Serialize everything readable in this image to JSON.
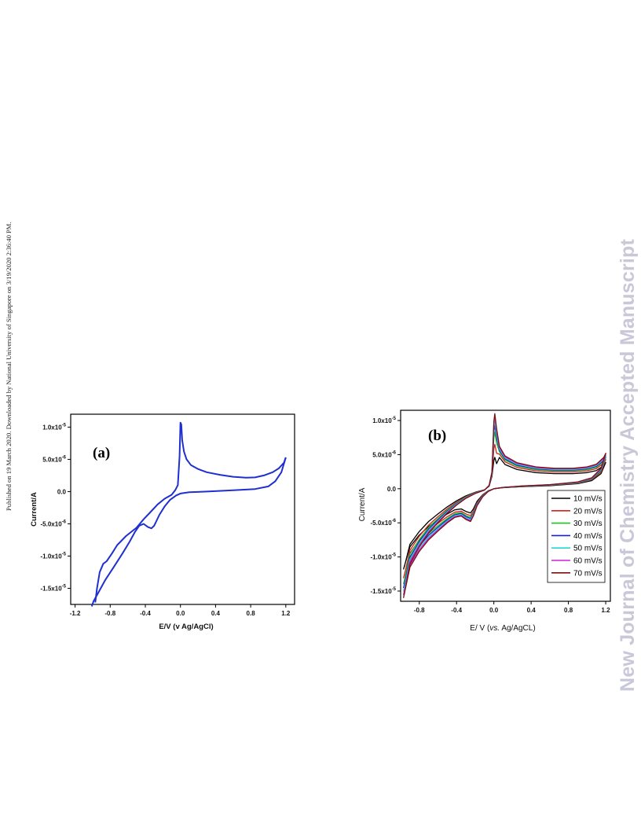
{
  "side_note": "Published on 19 March 2020. Downloaded by National University of Singapore on 3/19/2020 2:36:40 PM.",
  "watermark": "New Journal of Chemistry Accepted Manuscript",
  "chart_data": [
    {
      "panel_label": "(a)",
      "type": "line",
      "xlabel": "E/V (v Ag/AgCl)",
      "ylabel": "Current/A",
      "xlim": [
        -1.25,
        1.3
      ],
      "ylim": [
        -1.75e-05,
        1.2e-05
      ],
      "xticks": [
        -1.2,
        -0.8,
        -0.4,
        0.0,
        0.4,
        0.8,
        1.2
      ],
      "xtick_labels": [
        "-1.2",
        "-0.8",
        "-0.4",
        "0.0",
        "0.4",
        "0.8",
        "1.2"
      ],
      "yticks": [
        1e-05,
        5e-06,
        0.0,
        -5e-06,
        -1e-05,
        -1.5e-05
      ],
      "ytick_labels": [
        {
          "base": "1.0x10",
          "exp": "-5"
        },
        {
          "base": "5.0x10",
          "exp": "-6"
        },
        {
          "base": "0.0",
          "exp": ""
        },
        {
          "base": "-5.0x10",
          "exp": "-6"
        },
        {
          "base": "-1.0x10",
          "exp": "-5"
        },
        {
          "base": "-1.5x10",
          "exp": "-5"
        }
      ],
      "color": "#1f2fd0",
      "series": [
        {
          "x": [
            -0.97,
            -0.95,
            -0.92,
            -0.88,
            -0.84,
            -0.78,
            -0.72,
            -0.62,
            -0.5,
            -0.42,
            -0.35,
            -0.26,
            -0.18,
            -0.1,
            -0.06,
            -0.03,
            -0.01,
            0.0,
            0.01,
            0.02,
            0.04,
            0.07,
            0.12,
            0.2,
            0.3,
            0.45,
            0.6,
            0.75,
            0.85,
            0.95,
            1.05,
            1.12,
            1.18,
            1.2
          ],
          "y": [
            -1.72e-05,
            -1.5e-05,
            -1.25e-05,
            -1.12e-05,
            -1.08e-05,
            -9.6e-06,
            -8.3e-06,
            -6.9e-06,
            -5.6e-06,
            -4.3e-06,
            -3.3e-06,
            -2e-06,
            -1.1e-06,
            -5e-07,
            2e-07,
            1e-06,
            5.5e-06,
            1.07e-05,
            1.04e-05,
            8e-06,
            6.2e-06,
            5e-06,
            4.1e-06,
            3.5e-06,
            3e-06,
            2.6e-06,
            2.3e-06,
            2.15e-06,
            2.2e-06,
            2.5e-06,
            3e-06,
            3.6e-06,
            4.5e-06,
            5.3e-06
          ]
        },
        {
          "x": [
            1.2,
            1.15,
            1.08,
            1.0,
            0.85,
            0.6,
            0.3,
            0.1,
            0.0,
            -0.05,
            -0.12,
            -0.18,
            -0.24,
            -0.3,
            -0.33,
            -0.37,
            -0.42,
            -0.47,
            -0.52,
            -0.58,
            -0.66,
            -0.76,
            -0.86,
            -0.94,
            -0.99,
            -1.01
          ],
          "y": [
            5.3e-06,
            3e-06,
            1.6e-06,
            8e-07,
            4e-07,
            2e-07,
            0.0,
            -1e-07,
            -3e-07,
            -6e-07,
            -1.3e-06,
            -2.3e-06,
            -3.6e-06,
            -5.3e-06,
            -5.7e-06,
            -5.5e-06,
            -5e-06,
            -5.3e-06,
            -6.3e-06,
            -7.8e-06,
            -9.6e-06,
            -1.17e-05,
            -1.38e-05,
            -1.58e-05,
            -1.7e-05,
            -1.78e-05
          ]
        }
      ]
    },
    {
      "panel_label": "(b)",
      "type": "line",
      "xlabel_parts": [
        "E/ V (",
        "vs.",
        " Ag/AgCL)"
      ],
      "ylabel": "Current/A",
      "xlim": [
        -1.0,
        1.25
      ],
      "ylim": [
        -1.65e-05,
        1.15e-05
      ],
      "xticks": [
        -0.8,
        -0.4,
        0.0,
        0.4,
        0.8,
        1.2
      ],
      "xtick_labels": [
        "-0.8",
        "-0.4",
        "0.0",
        "0.4",
        "0.8",
        "1.2"
      ],
      "yticks": [
        1e-05,
        5e-06,
        0.0,
        -5e-06,
        -1e-05,
        -1.5e-05
      ],
      "ytick_labels": [
        {
          "base": "1.0x10",
          "exp": "-5"
        },
        {
          "base": "5.0x10",
          "exp": "-6"
        },
        {
          "base": "0.0",
          "exp": ""
        },
        {
          "base": "-5.0x10",
          "exp": "-6"
        },
        {
          "base": "-1.0x10",
          "exp": "-5"
        },
        {
          "base": "-1.5x10",
          "exp": "-5"
        }
      ],
      "legend_position": "lower-right",
      "series": [
        {
          "name": "10 mV/s",
          "color": "#000000",
          "scale": 0.42,
          "peak": 4.6e-06
        },
        {
          "name": "20 mV/s",
          "color": "#d42020",
          "scale": 0.6,
          "peak": 6.5e-06
        },
        {
          "name": "30 mV/s",
          "color": "#20c020",
          "scale": 0.72,
          "peak": 8.3e-06
        },
        {
          "name": "40 mV/s",
          "color": "#2020c0",
          "scale": 0.8,
          "peak": 9.3e-06
        },
        {
          "name": "50 mV/s",
          "color": "#20d8d8",
          "scale": 0.87,
          "peak": 1e-05
        },
        {
          "name": "60 mV/s",
          "color": "#d020d0",
          "scale": 0.94,
          "peak": 1.07e-05
        },
        {
          "name": "70 mV/s",
          "color": "#7a1010",
          "scale": 1.0,
          "peak": 1.1e-05
        }
      ]
    }
  ]
}
